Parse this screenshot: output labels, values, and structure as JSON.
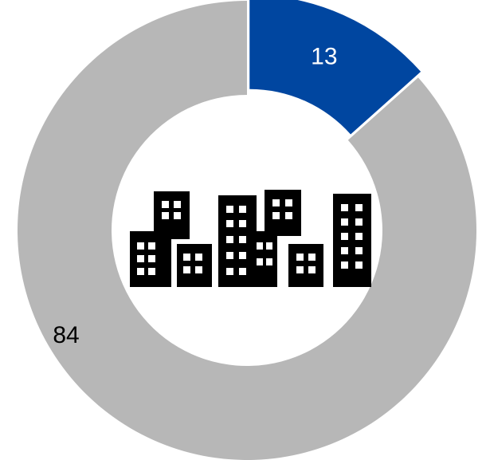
{
  "chart_data": {
    "type": "donut",
    "values": [
      13,
      84
    ],
    "colors": [
      "#0046a0",
      "#b7b7b7"
    ],
    "label_colors": [
      "#ffffff",
      "#000000"
    ]
  }
}
